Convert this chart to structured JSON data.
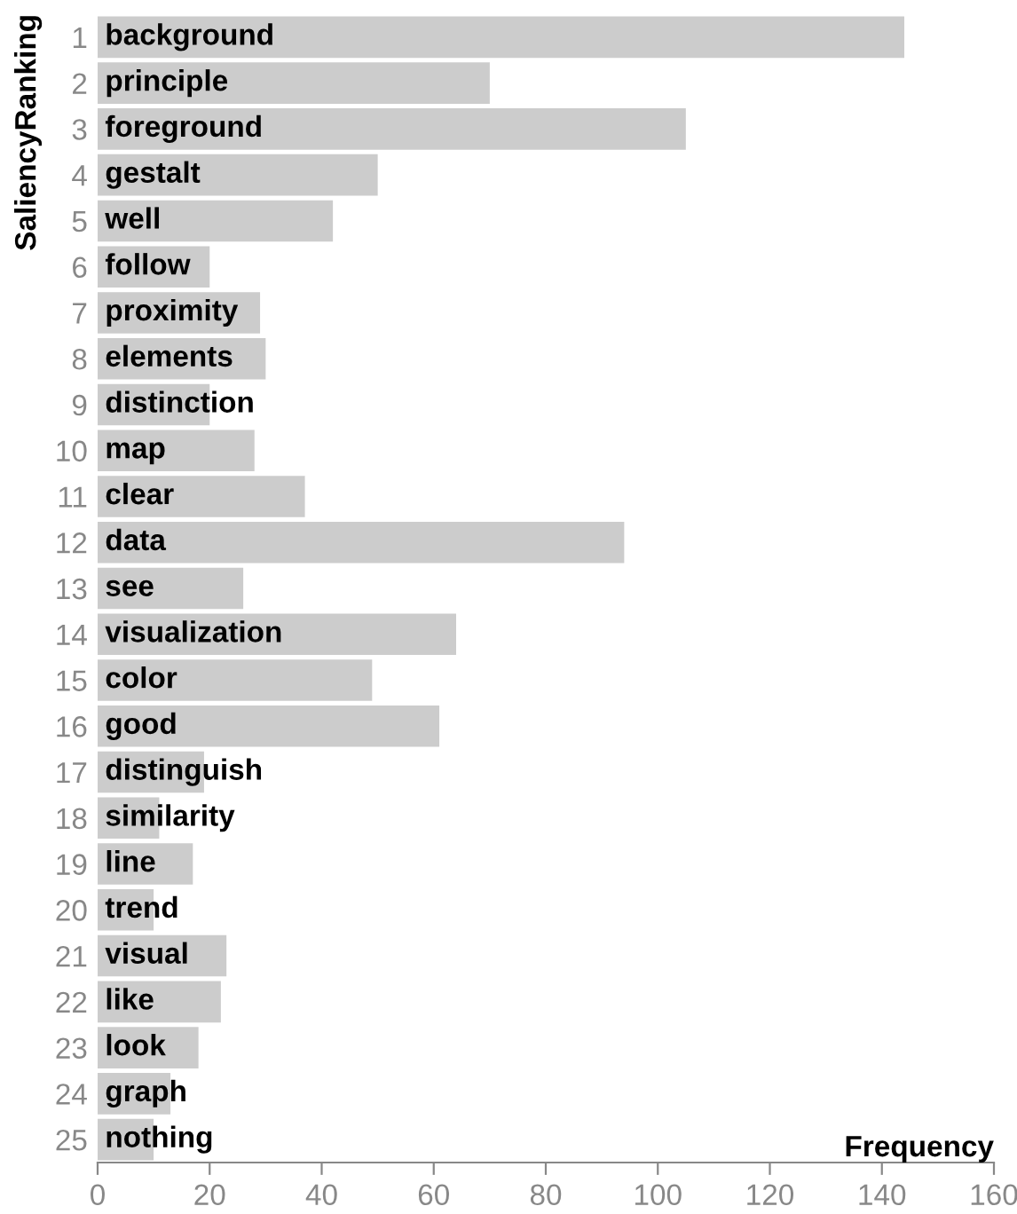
{
  "chart_data": {
    "type": "bar",
    "orientation": "horizontal",
    "xlabel": "Frequency",
    "ylabel": "SaliencyRanking",
    "categories": [
      "1",
      "2",
      "3",
      "4",
      "5",
      "6",
      "7",
      "8",
      "9",
      "10",
      "11",
      "12",
      "13",
      "14",
      "15",
      "16",
      "17",
      "18",
      "19",
      "20",
      "21",
      "22",
      "23",
      "24",
      "25"
    ],
    "values": [
      144,
      70,
      105,
      50,
      42,
      20,
      29,
      30,
      20,
      28,
      37,
      94,
      26,
      64,
      49,
      61,
      19,
      11,
      17,
      10,
      23,
      22,
      18,
      13,
      10
    ],
    "color": "#cccccc",
    "xlim": [
      0,
      160
    ],
    "xticks": [
      0,
      20,
      40,
      60,
      80,
      100,
      120,
      140,
      160
    ],
    "grid": false,
    "legend": false,
    "annotations": [
      {
        "text": "background",
        "y": "1"
      },
      {
        "text": "principle",
        "y": "2"
      },
      {
        "text": "foreground",
        "y": "3"
      },
      {
        "text": "gestalt",
        "y": "4"
      },
      {
        "text": "well",
        "y": "5"
      },
      {
        "text": "follow",
        "y": "6"
      },
      {
        "text": "proximity",
        "y": "7"
      },
      {
        "text": "elements",
        "y": "8"
      },
      {
        "text": "distinction",
        "y": "9"
      },
      {
        "text": "map",
        "y": "10"
      },
      {
        "text": "clear",
        "y": "11"
      },
      {
        "text": "data",
        "y": "12"
      },
      {
        "text": "see",
        "y": "13"
      },
      {
        "text": "visualization",
        "y": "14"
      },
      {
        "text": "color",
        "y": "15"
      },
      {
        "text": "good",
        "y": "16"
      },
      {
        "text": "distinguish",
        "y": "17"
      },
      {
        "text": "similarity",
        "y": "18"
      },
      {
        "text": "line",
        "y": "19"
      },
      {
        "text": "trend",
        "y": "20"
      },
      {
        "text": "visual",
        "y": "21"
      },
      {
        "text": "like",
        "y": "22"
      },
      {
        "text": "look",
        "y": "23"
      },
      {
        "text": "graph",
        "y": "24"
      },
      {
        "text": "nothing",
        "y": "25"
      }
    ]
  }
}
